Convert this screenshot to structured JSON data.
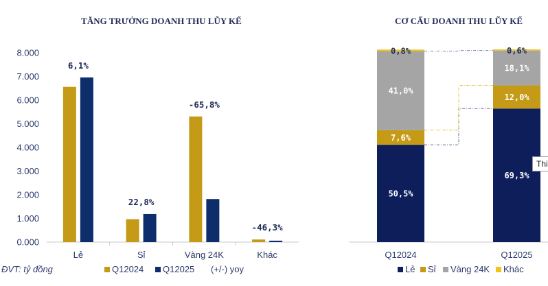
{
  "unit_note": "ĐVT: tỷ đồng",
  "colors": {
    "period1": "#C49A16",
    "period2": "#0D2D6B",
    "le": "#0D1E5A",
    "si": "#C49A16",
    "vang": "#A5A5A5",
    "khac": "#F0C419"
  },
  "tooltip": {
    "text": "Thi"
  },
  "chart_data": [
    {
      "type": "bar",
      "title": "TĂNG TRƯỞNG DOANH THU LŨY KẾ",
      "categories": [
        "Lẻ",
        "Sỉ",
        "Vàng 24K",
        "Khác"
      ],
      "series": [
        {
          "name": "Q12024",
          "values": [
            6.56,
            0.97,
            5.31,
            0.11
          ]
        },
        {
          "name": "Q12025",
          "values": [
            6.96,
            1.19,
            1.82,
            0.06
          ]
        }
      ],
      "yoy_labels": [
        "6,1%",
        "22,8%",
        "-65,8%",
        "-46,3%"
      ],
      "yoy_legend": "(+/-) yoy",
      "ylim": [
        0,
        8
      ],
      "yticks": [
        "0.000",
        "1.000",
        "2.000",
        "3.000",
        "4.000",
        "5.000",
        "6.000",
        "7.000",
        "8.000"
      ],
      "ytick_values": [
        0,
        1,
        2,
        3,
        4,
        5,
        6,
        7,
        8
      ]
    },
    {
      "type": "bar",
      "stacked": true,
      "title": "CƠ CẤU DOANH THU LŨY KẾ",
      "categories": [
        "Q12024",
        "Q12025"
      ],
      "series": [
        {
          "name": "Lẻ",
          "values": [
            50.5,
            69.3
          ],
          "labels": [
            "50,5%",
            "69,3%"
          ]
        },
        {
          "name": "Sỉ",
          "values": [
            7.6,
            12.0
          ],
          "labels": [
            "7,6%",
            "12,0%"
          ]
        },
        {
          "name": "Vàng 24K",
          "values": [
            41.0,
            18.1
          ],
          "labels": [
            "41,0%",
            "18,1%"
          ]
        },
        {
          "name": "Khác",
          "values": [
            0.8,
            0.6
          ],
          "labels": [
            "0,8%",
            "0,6%"
          ]
        }
      ]
    }
  ]
}
